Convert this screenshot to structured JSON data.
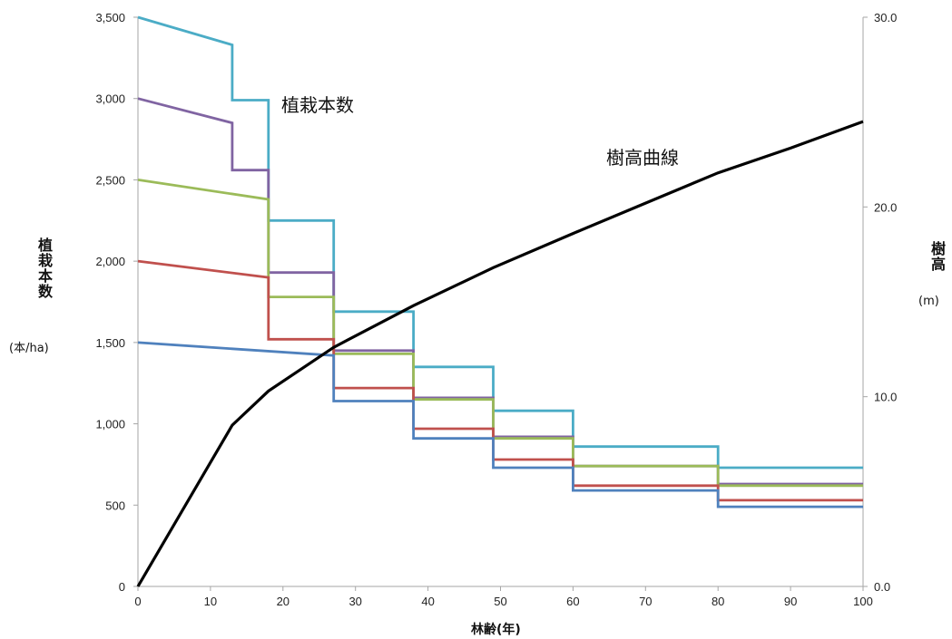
{
  "chart_data": {
    "type": "line",
    "xlabel": "林齢(年)",
    "ylabel_left": "植栽本数",
    "ylabel_left_unit": "(本/ha)",
    "ylabel_right": "樹高",
    "ylabel_right_unit": "(m)",
    "xlim": [
      0,
      100
    ],
    "ylim_left": [
      0,
      3500
    ],
    "ylim_right": [
      0,
      30
    ],
    "x_ticks": [
      "0",
      "10",
      "20",
      "30",
      "40",
      "50",
      "60",
      "70",
      "80",
      "90",
      "100"
    ],
    "y_left_ticks": [
      "0",
      "500",
      "1,000",
      "1,500",
      "2,000",
      "2,500",
      "3,000",
      "3,500"
    ],
    "y_right_ticks": [
      "0.0",
      "10.0",
      "20.0",
      "30.0"
    ],
    "grid": false,
    "annotations": [
      {
        "text": "植栽本数"
      },
      {
        "text": "樹高曲線"
      }
    ],
    "series": [
      {
        "color": "#4bacc6",
        "axis": "left",
        "points": [
          [
            0,
            3500
          ],
          [
            13,
            3330
          ],
          [
            13,
            2990
          ],
          [
            18,
            2990
          ],
          [
            18,
            2250
          ],
          [
            27,
            2250
          ],
          [
            27,
            1690
          ],
          [
            38,
            1690
          ],
          [
            38,
            1350
          ],
          [
            49,
            1350
          ],
          [
            49,
            1080
          ],
          [
            60,
            1080
          ],
          [
            60,
            860
          ],
          [
            80,
            860
          ],
          [
            80,
            730
          ],
          [
            100,
            730
          ]
        ]
      },
      {
        "color": "#8064a2",
        "axis": "left",
        "points": [
          [
            0,
            3000
          ],
          [
            13,
            2850
          ],
          [
            13,
            2560
          ],
          [
            18,
            2560
          ],
          [
            18,
            1930
          ],
          [
            27,
            1930
          ],
          [
            27,
            1450
          ],
          [
            38,
            1450
          ],
          [
            38,
            1160
          ],
          [
            49,
            1160
          ],
          [
            49,
            920
          ],
          [
            60,
            920
          ],
          [
            60,
            740
          ],
          [
            80,
            740
          ],
          [
            80,
            630
          ],
          [
            100,
            630
          ]
        ]
      },
      {
        "color": "#9bbb59",
        "axis": "left",
        "points": [
          [
            0,
            2500
          ],
          [
            18,
            2380
          ],
          [
            18,
            1780
          ],
          [
            27,
            1780
          ],
          [
            27,
            1430
          ],
          [
            38,
            1430
          ],
          [
            38,
            1150
          ],
          [
            49,
            1150
          ],
          [
            49,
            910
          ],
          [
            60,
            910
          ],
          [
            60,
            740
          ],
          [
            80,
            740
          ],
          [
            80,
            620
          ],
          [
            100,
            620
          ]
        ]
      },
      {
        "color": "#c0504d",
        "axis": "left",
        "points": [
          [
            0,
            2000
          ],
          [
            18,
            1900
          ],
          [
            18,
            1520
          ],
          [
            27,
            1520
          ],
          [
            27,
            1220
          ],
          [
            38,
            1220
          ],
          [
            38,
            970
          ],
          [
            49,
            970
          ],
          [
            49,
            780
          ],
          [
            60,
            780
          ],
          [
            60,
            620
          ],
          [
            80,
            620
          ],
          [
            80,
            530
          ],
          [
            100,
            530
          ]
        ]
      },
      {
        "color": "#4f81bd",
        "axis": "left",
        "points": [
          [
            0,
            1500
          ],
          [
            27,
            1420
          ],
          [
            27,
            1140
          ],
          [
            38,
            1140
          ],
          [
            38,
            910
          ],
          [
            49,
            910
          ],
          [
            49,
            730
          ],
          [
            60,
            730
          ],
          [
            60,
            590
          ],
          [
            80,
            590
          ],
          [
            80,
            490
          ],
          [
            100,
            490
          ]
        ]
      },
      {
        "color": "#000000",
        "axis": "right",
        "points": [
          [
            0,
            0
          ],
          [
            13,
            8.5
          ],
          [
            18,
            10.3
          ],
          [
            27,
            12.6
          ],
          [
            38,
            14.8
          ],
          [
            49,
            16.8
          ],
          [
            60,
            18.6
          ],
          [
            70,
            20.2
          ],
          [
            80,
            21.8
          ],
          [
            90,
            23.1
          ],
          [
            100,
            24.5
          ]
        ]
      }
    ]
  }
}
